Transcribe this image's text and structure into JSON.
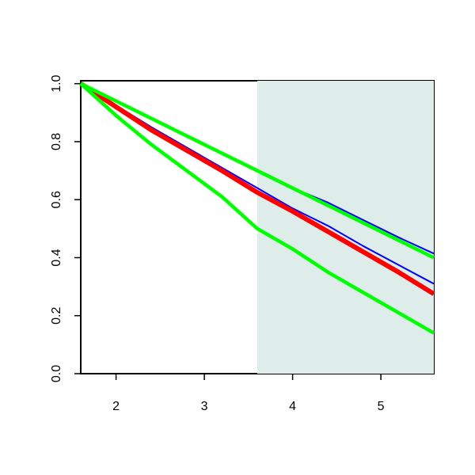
{
  "chart_data": {
    "type": "line",
    "x": [
      1.6,
      2.0,
      2.4,
      2.8,
      3.2,
      3.6,
      4.0,
      4.4,
      4.8,
      5.2,
      5.6
    ],
    "series": [
      {
        "color": "#0000ff",
        "line_width": 2,
        "values": [
          1.0,
          0.94,
          0.88,
          0.82,
          0.76,
          0.7,
          0.64,
          0.59,
          0.53,
          0.47,
          0.414
        ]
      },
      {
        "color": "#0000ff",
        "line_width": 2,
        "values": [
          1.0,
          0.925,
          0.85,
          0.78,
          0.71,
          0.64,
          0.57,
          0.51,
          0.44,
          0.375,
          0.31
        ]
      },
      {
        "color": "#ff0000",
        "line_width": 6,
        "values": [
          1.0,
          0.92,
          0.84,
          0.77,
          0.7,
          0.625,
          0.56,
          0.49,
          0.42,
          0.35,
          0.275
        ]
      },
      {
        "color": "#00ff00",
        "line_width": 4.5,
        "values": [
          1.0,
          0.94,
          0.88,
          0.82,
          0.76,
          0.7,
          0.64,
          0.58,
          0.52,
          0.46,
          0.4
        ]
      },
      {
        "color": "#00ff00",
        "line_width": 4.5,
        "values": [
          1.0,
          0.89,
          0.79,
          0.7,
          0.61,
          0.5,
          0.43,
          0.35,
          0.28,
          0.21,
          0.14
        ]
      }
    ],
    "highlight": {
      "xlim": [
        3.6,
        5.6
      ],
      "color": "#deecea"
    },
    "xlim": [
      1.6,
      5.6
    ],
    "ylim": [
      0,
      1.01
    ],
    "xticks": [
      2,
      3,
      4,
      5
    ],
    "yticks": [
      {
        "value": 0,
        "label": "0.0"
      },
      {
        "value": 0.2,
        "label": "0.2"
      },
      {
        "value": 0.4,
        "label": "0.4"
      },
      {
        "value": 0.6,
        "label": "0.6"
      },
      {
        "value": 0.8,
        "label": "0.8"
      },
      {
        "value": 1,
        "label": "1.0"
      }
    ]
  }
}
